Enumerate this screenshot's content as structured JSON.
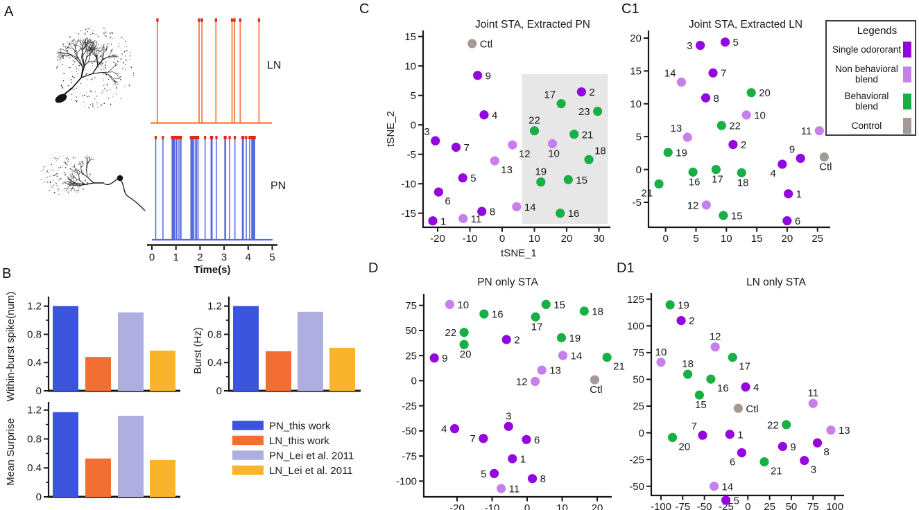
{
  "panel_labels": {
    "a": "A",
    "b": "B",
    "c": "C",
    "c1": "C1",
    "d": "D",
    "d1": "D1"
  },
  "colors": {
    "single_odorant": "#9406DE",
    "non_behavioral_blend": "#C77FEC",
    "behavioral_blend": "#18AF44",
    "control": "#A39A96",
    "bars": [
      "#3A55DC",
      "#F26E32",
      "#AEAEE0",
      "#FAB42C"
    ],
    "ln_spike": "#F1763B",
    "pn_spike": "#5668E2",
    "spike_top": "#DE2A1E",
    "shaded_region": "#E7E7E7",
    "axis": "#161616",
    "text": "#1A1A1A"
  },
  "scatter_legend": {
    "title": "Legends",
    "items": [
      {
        "cat": "single",
        "lines": [
          "Single odororant"
        ]
      },
      {
        "cat": "nonbehavioral",
        "lines": [
          "Non behavioral",
          "blend"
        ]
      },
      {
        "cat": "behavioral",
        "lines": [
          "Behavioral",
          "blend"
        ]
      },
      {
        "cat": "control",
        "lines": [
          "Control"
        ]
      }
    ]
  },
  "chart_data": [
    {
      "id": "spike_trains",
      "panel": "A",
      "type": "line",
      "xlabel": "Time(s)",
      "xlim": [
        0,
        5
      ],
      "xticks": [
        0,
        1,
        2,
        3,
        4,
        5
      ],
      "series": [
        {
          "name": "LN",
          "spike_times": [
            0.23,
            1.96,
            2.08,
            2.66,
            3.33,
            3.43,
            3.67,
            4.45
          ]
        },
        {
          "name": "PN",
          "spike_times": [
            0.16,
            0.46,
            0.84,
            0.86,
            0.88,
            0.9,
            0.92,
            0.95,
            1.02,
            1.09,
            1.16,
            1.21,
            1.62,
            1.65,
            1.69,
            1.73,
            1.8,
            1.86,
            1.92,
            2.21,
            2.46,
            2.5,
            2.68,
            3.03,
            3.06,
            3.23,
            3.45,
            3.76,
            3.8,
            3.92,
            4.06,
            4.15,
            4.17,
            4.19,
            4.21,
            4.23,
            4.25,
            4.27
          ]
        }
      ]
    },
    {
      "id": "within_burst_spike",
      "panel": "B",
      "type": "bar",
      "ylabel": "Within-burst spike(num)",
      "ylim": [
        0,
        1.3
      ],
      "yticks": [
        0,
        0.4,
        0.8,
        1.2
      ],
      "categories": [
        "PN_this work",
        "LN_this work",
        "PN_Lei et  al. 2011",
        "LN_Lei et  al. 2011"
      ],
      "values": [
        1.2,
        0.48,
        1.11,
        0.57
      ]
    },
    {
      "id": "burst_rate",
      "panel": "B",
      "type": "bar",
      "ylabel": "Burst (Hz)",
      "ylim": [
        0,
        1.3
      ],
      "yticks": [
        0,
        0.4,
        0.8,
        1.2
      ],
      "categories": [
        "PN_this work",
        "LN_this work",
        "PN_Lei et  al. 2011",
        "LN_Lei et  al. 2011"
      ],
      "values": [
        1.2,
        0.56,
        1.12,
        0.61
      ]
    },
    {
      "id": "mean_surprise",
      "panel": "B",
      "type": "bar",
      "ylabel": "Mean Surprise",
      "ylim": [
        0,
        1.3
      ],
      "yticks": [
        0,
        0.4,
        0.8,
        1.2
      ],
      "categories": [
        "PN_this work",
        "LN_this work",
        "PN_Lei et  al. 2011",
        "LN_Lei et  al. 2011"
      ],
      "values": [
        1.17,
        0.53,
        1.12,
        0.51
      ]
    },
    {
      "id": "joint_sta_pn",
      "panel": "C",
      "type": "scatter",
      "title": "Joint STA, Extracted PN",
      "xlabel": "tSNE_1",
      "ylabel": "tSNE_2",
      "xlim": [
        -26,
        33
      ],
      "ylim": [
        -17.5,
        16
      ],
      "xticks": [
        -20,
        -10,
        0,
        10,
        20,
        30
      ],
      "yticks": [
        15,
        10,
        5,
        0,
        -5,
        -10,
        -15
      ],
      "shaded_region": {
        "x0": 6.1,
        "x1": 32.8,
        "y0": -16.8,
        "y1": 8.6
      },
      "points": [
        {
          "label": "Ctl",
          "cat": "control",
          "x": -9.3,
          "y": 13.8,
          "side": "r"
        },
        {
          "label": "9",
          "cat": "single",
          "x": -7.6,
          "y": 8.4,
          "side": "r"
        },
        {
          "label": "2",
          "cat": "single",
          "x": 24.6,
          "y": 5.6,
          "side": "r"
        },
        {
          "label": "17",
          "cat": "behavioral",
          "x": 18.3,
          "y": 3.6,
          "side": "tl"
        },
        {
          "label": "23",
          "cat": "behavioral",
          "x": 29.6,
          "y": 2.3,
          "side": "l"
        },
        {
          "label": "4",
          "cat": "single",
          "x": -5.6,
          "y": 1.7,
          "side": "r"
        },
        {
          "label": "22",
          "cat": "behavioral",
          "x": 10,
          "y": -1,
          "side": "t"
        },
        {
          "label": "21",
          "cat": "behavioral",
          "x": 22.3,
          "y": -1.6,
          "side": "r"
        },
        {
          "label": "3",
          "cat": "single",
          "x": -20.7,
          "y": -2.7,
          "side": "tl"
        },
        {
          "label": "7",
          "cat": "single",
          "x": -14.3,
          "y": -3.8,
          "side": "r"
        },
        {
          "label": "12",
          "cat": "nonbehavioral",
          "x": 3.2,
          "y": -3.4,
          "side": "br"
        },
        {
          "label": "10",
          "cat": "nonbehavioral",
          "x": 15.6,
          "y": -3.2,
          "side": "b"
        },
        {
          "label": "13",
          "cat": "nonbehavioral",
          "x": -2.3,
          "y": -6.1,
          "side": "br"
        },
        {
          "label": "18",
          "cat": "behavioral",
          "x": 26.9,
          "y": -5.9,
          "side": "tr"
        },
        {
          "label": "5",
          "cat": "single",
          "x": -12.2,
          "y": -9,
          "side": "r"
        },
        {
          "label": "19",
          "cat": "behavioral",
          "x": 12,
          "y": -9.7,
          "side": "t"
        },
        {
          "label": "15",
          "cat": "behavioral",
          "x": 20.5,
          "y": -9.3,
          "side": "r"
        },
        {
          "label": "6",
          "cat": "single",
          "x": -19.7,
          "y": -11.4,
          "side": "br"
        },
        {
          "label": "14",
          "cat": "nonbehavioral",
          "x": 4.5,
          "y": -13.9,
          "side": "r"
        },
        {
          "label": "8",
          "cat": "single",
          "x": -6.3,
          "y": -14.7,
          "side": "r"
        },
        {
          "label": "16",
          "cat": "behavioral",
          "x": 18,
          "y": -15,
          "side": "r"
        },
        {
          "label": "1",
          "cat": "single",
          "x": -21.5,
          "y": -16.3,
          "side": "r"
        },
        {
          "label": "11",
          "cat": "nonbehavioral",
          "x": -12.1,
          "y": -15.9,
          "side": "r"
        }
      ]
    },
    {
      "id": "joint_sta_ln",
      "panel": "C1",
      "type": "scatter",
      "title": "Joint STA, Extracted LN",
      "xlim": [
        -2.5,
        27
      ],
      "ylim": [
        -8.8,
        21
      ],
      "xticks": [
        0,
        5,
        10,
        15,
        20,
        25
      ],
      "yticks": [
        20,
        15,
        10,
        5,
        0,
        -5
      ],
      "points": [
        {
          "label": "3",
          "cat": "single",
          "x": 5.7,
          "y": 18.9,
          "side": "l"
        },
        {
          "label": "5",
          "cat": "single",
          "x": 9.8,
          "y": 19.4,
          "side": "r"
        },
        {
          "label": "7",
          "cat": "single",
          "x": 7.8,
          "y": 14.7,
          "side": "r"
        },
        {
          "label": "14",
          "cat": "nonbehavioral",
          "x": 2.6,
          "y": 13.3,
          "side": "tl"
        },
        {
          "label": "20",
          "cat": "behavioral",
          "x": 14.1,
          "y": 11.7,
          "side": "r"
        },
        {
          "label": "8",
          "cat": "single",
          "x": 6.6,
          "y": 10.9,
          "side": "r"
        },
        {
          "label": "10",
          "cat": "nonbehavioral",
          "x": 13.3,
          "y": 8.3,
          "side": "r"
        },
        {
          "label": "22",
          "cat": "behavioral",
          "x": 9.2,
          "y": 6.7,
          "side": "r"
        },
        {
          "label": "11",
          "cat": "nonbehavioral",
          "x": 25.3,
          "y": 5.9,
          "side": "l"
        },
        {
          "label": "13",
          "cat": "nonbehavioral",
          "x": 3.6,
          "y": 4.9,
          "side": "tl"
        },
        {
          "label": "2",
          "cat": "single",
          "x": 11.1,
          "y": 3.8,
          "side": "r"
        },
        {
          "label": "19",
          "cat": "behavioral",
          "x": 0.4,
          "y": 2.6,
          "side": "r"
        },
        {
          "label": "9",
          "cat": "single",
          "x": 22.2,
          "y": 1.7,
          "side": "tl"
        },
        {
          "label": "Ctl",
          "cat": "control",
          "x": 26.1,
          "y": 1.9,
          "side": "b"
        },
        {
          "label": "4",
          "cat": "single",
          "x": 19.2,
          "y": 0.8,
          "side": "bl"
        },
        {
          "label": "16",
          "cat": "behavioral",
          "x": 4.5,
          "y": -0.4,
          "side": "b"
        },
        {
          "label": "17",
          "cat": "behavioral",
          "x": 8.3,
          "y": 0,
          "side": "b"
        },
        {
          "label": "18",
          "cat": "behavioral",
          "x": 12.5,
          "y": -0.5,
          "side": "b"
        },
        {
          "label": "21",
          "cat": "behavioral",
          "x": -1.1,
          "y": -2.2,
          "side": "bl"
        },
        {
          "label": "1",
          "cat": "single",
          "x": 20.2,
          "y": -3.7,
          "side": "r"
        },
        {
          "label": "12",
          "cat": "nonbehavioral",
          "x": 6.7,
          "y": -5.4,
          "side": "l"
        },
        {
          "label": "15",
          "cat": "behavioral",
          "x": 9.5,
          "y": -7,
          "side": "r"
        },
        {
          "label": "6",
          "cat": "single",
          "x": 20,
          "y": -7.8,
          "side": "r"
        }
      ]
    },
    {
      "id": "pn_only_sta",
      "panel": "D",
      "type": "scatter",
      "title": "PN only STA",
      "xlim": [
        -29.5,
        24
      ],
      "ylim": [
        -116,
        82
      ],
      "xticks": [
        -20,
        -10,
        0,
        10,
        20
      ],
      "yticks": [
        75,
        50,
        25,
        0,
        -25,
        -50,
        -75,
        -100
      ],
      "points": [
        {
          "label": "10",
          "cat": "nonbehavioral",
          "x": -22.1,
          "y": 76,
          "side": "r"
        },
        {
          "label": "16",
          "cat": "behavioral",
          "x": -12.3,
          "y": 66.5,
          "side": "r"
        },
        {
          "label": "15",
          "cat": "behavioral",
          "x": 5.4,
          "y": 76,
          "side": "r"
        },
        {
          "label": "18",
          "cat": "behavioral",
          "x": 16.3,
          "y": 69.3,
          "side": "r"
        },
        {
          "label": "17",
          "cat": "behavioral",
          "x": 2.4,
          "y": 63.5,
          "side": "b"
        },
        {
          "label": "22",
          "cat": "behavioral",
          "x": -18,
          "y": 48.1,
          "side": "l"
        },
        {
          "label": "19",
          "cat": "behavioral",
          "x": 9.8,
          "y": 42.8,
          "side": "r"
        },
        {
          "label": "2",
          "cat": "single",
          "x": -5.9,
          "y": 41,
          "side": "r"
        },
        {
          "label": "20",
          "cat": "behavioral",
          "x": -18,
          "y": 36,
          "side": "b"
        },
        {
          "label": "14",
          "cat": "nonbehavioral",
          "x": 10.2,
          "y": 25.1,
          "side": "r"
        },
        {
          "label": "9",
          "cat": "single",
          "x": -26.5,
          "y": 22.6,
          "side": "r"
        },
        {
          "label": "21",
          "cat": "behavioral",
          "x": 22.8,
          "y": 23.3,
          "side": "br"
        },
        {
          "label": "13",
          "cat": "nonbehavioral",
          "x": 4.2,
          "y": 10.6,
          "side": "r"
        },
        {
          "label": "12",
          "cat": "nonbehavioral",
          "x": 2.3,
          "y": -0.7,
          "side": "l"
        },
        {
          "label": "Ctl",
          "cat": "control",
          "x": 19.3,
          "y": 0.9,
          "side": "b"
        },
        {
          "label": "3",
          "cat": "single",
          "x": -5.3,
          "y": -45.5,
          "side": "t"
        },
        {
          "label": "4",
          "cat": "single",
          "x": -20.7,
          "y": -47.8,
          "side": "l"
        },
        {
          "label": "7",
          "cat": "single",
          "x": -12.5,
          "y": -57.5,
          "side": "l"
        },
        {
          "label": "6",
          "cat": "single",
          "x": -0.2,
          "y": -58.6,
          "side": "r"
        },
        {
          "label": "1",
          "cat": "single",
          "x": -4.2,
          "y": -77.7,
          "side": "r"
        },
        {
          "label": "5",
          "cat": "single",
          "x": -9.4,
          "y": -92.4,
          "side": "l"
        },
        {
          "label": "8",
          "cat": "single",
          "x": 1.5,
          "y": -97.5,
          "side": "r"
        },
        {
          "label": "11",
          "cat": "nonbehavioral",
          "x": -7.4,
          "y": -107.4,
          "side": "r"
        }
      ]
    },
    {
      "id": "ln_only_sta",
      "panel": "D1",
      "type": "scatter",
      "title": "LN only STA",
      "xlim": [
        -111,
        110
      ],
      "ylim": [
        -59,
        129
      ],
      "xticks": [
        -100,
        -75,
        -50,
        -25,
        0,
        25,
        50,
        75,
        100
      ],
      "yticks": [
        125,
        100,
        75,
        50,
        25,
        0,
        -25,
        -50
      ],
      "points": [
        {
          "label": "19",
          "cat": "behavioral",
          "x": -89.5,
          "y": 119.7,
          "side": "r"
        },
        {
          "label": "2",
          "cat": "single",
          "x": -76.8,
          "y": 105,
          "side": "r"
        },
        {
          "label": "12",
          "cat": "nonbehavioral",
          "x": -37.6,
          "y": 80.3,
          "side": "t"
        },
        {
          "label": "10",
          "cat": "nonbehavioral",
          "x": -100,
          "y": 66,
          "side": "t"
        },
        {
          "label": "17",
          "cat": "behavioral",
          "x": -17.6,
          "y": 70.6,
          "side": "br"
        },
        {
          "label": "18",
          "cat": "behavioral",
          "x": -69.2,
          "y": 54.8,
          "side": "t"
        },
        {
          "label": "16",
          "cat": "behavioral",
          "x": -42.6,
          "y": 50.2,
          "side": "br"
        },
        {
          "label": "4",
          "cat": "single",
          "x": -2.6,
          "y": 42.9,
          "side": "r"
        },
        {
          "label": "15",
          "cat": "behavioral",
          "x": -55.8,
          "y": 35.3,
          "side": "b"
        },
        {
          "label": "Ctl",
          "cat": "control",
          "x": -11.1,
          "y": 22.9,
          "side": "r"
        },
        {
          "label": "11",
          "cat": "nonbehavioral",
          "x": 75,
          "y": 27.5,
          "side": "t"
        },
        {
          "label": "22",
          "cat": "behavioral",
          "x": 44.2,
          "y": 7.6,
          "side": "l"
        },
        {
          "label": "13",
          "cat": "nonbehavioral",
          "x": 95.5,
          "y": 2.5,
          "side": "r"
        },
        {
          "label": "7",
          "cat": "single",
          "x": -52.1,
          "y": -2.3,
          "side": "tl"
        },
        {
          "label": "1",
          "cat": "single",
          "x": -20.8,
          "y": -1.4,
          "side": "r"
        },
        {
          "label": "20",
          "cat": "behavioral",
          "x": -86.8,
          "y": -4.4,
          "side": "br"
        },
        {
          "label": "9",
          "cat": "single",
          "x": 40,
          "y": -12.8,
          "side": "r"
        },
        {
          "label": "8",
          "cat": "single",
          "x": 80,
          "y": -9.4,
          "side": "br"
        },
        {
          "label": "6",
          "cat": "single",
          "x": -7.1,
          "y": -18.6,
          "side": "bl"
        },
        {
          "label": "21",
          "cat": "behavioral",
          "x": 18.9,
          "y": -27.1,
          "side": "br"
        },
        {
          "label": "3",
          "cat": "single",
          "x": 65,
          "y": -25.9,
          "side": "br"
        },
        {
          "label": "14",
          "cat": "nonbehavioral",
          "x": -38.9,
          "y": -50,
          "side": "r"
        },
        {
          "label": "5",
          "cat": "single",
          "x": -25.3,
          "y": -63.1,
          "side": "r"
        }
      ]
    }
  ]
}
